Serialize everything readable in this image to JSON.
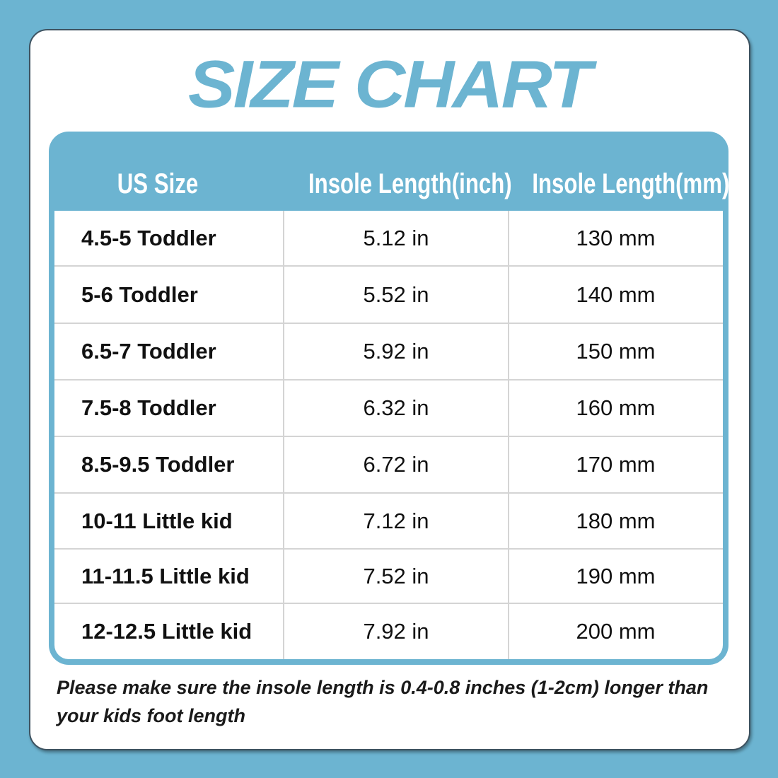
{
  "title": "SIZE CHART",
  "colors": {
    "accent": "#6cb4d1",
    "background": "#6cb4d1",
    "card": "#ffffff"
  },
  "table": {
    "headers": [
      "US Size",
      "Insole Length(inch)",
      "Insole Length(mm)"
    ],
    "rows": [
      [
        "4.5-5 Toddler",
        "5.12 in",
        "130 mm"
      ],
      [
        "5-6 Toddler",
        "5.52 in",
        "140 mm"
      ],
      [
        "6.5-7 Toddler",
        "5.92 in",
        "150 mm"
      ],
      [
        "7.5-8 Toddler",
        "6.32 in",
        "160 mm"
      ],
      [
        "8.5-9.5 Toddler",
        "6.72 in",
        "170 mm"
      ],
      [
        "10-11 Little kid",
        "7.12 in",
        "180 mm"
      ],
      [
        "11-11.5 Little kid",
        "7.52 in",
        "190 mm"
      ],
      [
        "12-12.5 Little kid",
        "7.92 in",
        "200 mm"
      ]
    ]
  },
  "note": "Please make sure the insole length is 0.4-0.8 inches (1-2cm) longer than your kids foot length"
}
